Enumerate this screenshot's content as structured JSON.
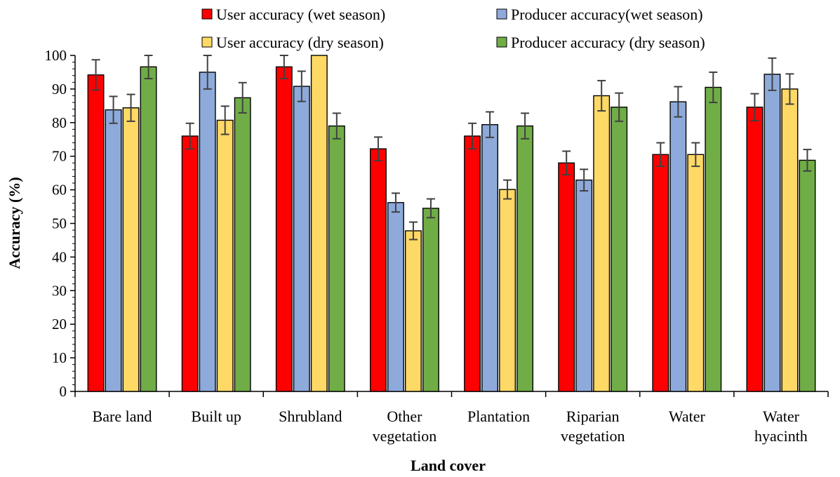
{
  "chart_data": {
    "type": "bar",
    "title": "",
    "xlabel": "Land cover",
    "ylabel": "Accuracy (%)",
    "ylim": [
      0,
      100
    ],
    "yticks": [
      0,
      10,
      20,
      30,
      40,
      50,
      60,
      70,
      80,
      90,
      100
    ],
    "grid": false,
    "legend_position": "top",
    "categories": [
      [
        "Bare land"
      ],
      [
        "Built up"
      ],
      [
        "Shrubland"
      ],
      [
        "Other",
        "vegetation"
      ],
      [
        "Plantation"
      ],
      [
        "Riparian",
        "vegetation"
      ],
      [
        "Water"
      ],
      [
        "Water",
        "hyacinth"
      ]
    ],
    "series": [
      {
        "name": "User accuracy (wet season)",
        "color": "#ff0000",
        "values": [
          94.2,
          76.0,
          96.6,
          72.2,
          76.0,
          68.0,
          70.5,
          84.6
        ],
        "error": [
          4.5,
          3.8,
          3.5,
          3.5,
          3.8,
          3.5,
          3.5,
          4.0
        ]
      },
      {
        "name": "Producer accuracy(wet season)",
        "color": "#8eaadb",
        "values": [
          83.8,
          95.0,
          90.8,
          56.2,
          79.4,
          62.9,
          86.2,
          94.4
        ],
        "error": [
          4.0,
          5.0,
          4.5,
          2.8,
          3.8,
          3.2,
          4.5,
          4.8
        ]
      },
      {
        "name": "User accuracy (dry season)",
        "color": "#ffd966",
        "values": [
          84.4,
          80.7,
          100.0,
          47.8,
          60.1,
          88.0,
          70.5,
          90.0
        ],
        "error": [
          4.0,
          4.2,
          0,
          2.6,
          2.8,
          4.5,
          3.5,
          4.5
        ]
      },
      {
        "name": "Producer accuracy (dry season)",
        "color": "#70ad47",
        "values": [
          96.6,
          87.4,
          79.0,
          54.5,
          79.0,
          84.6,
          90.5,
          68.8
        ],
        "error": [
          3.5,
          4.5,
          3.8,
          2.8,
          3.8,
          4.2,
          4.5,
          3.2
        ]
      }
    ]
  }
}
